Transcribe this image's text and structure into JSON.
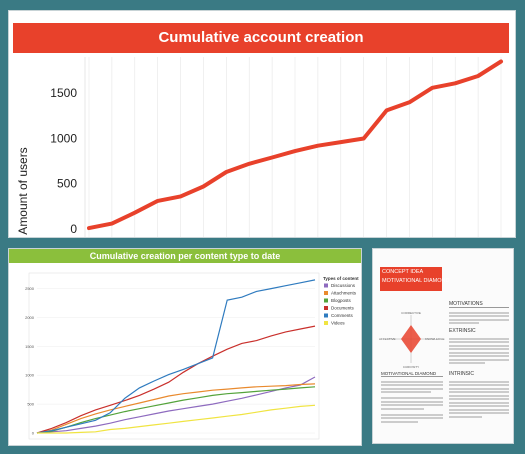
{
  "panel1": {
    "title": "Cumulative account creation",
    "chart_data": {
      "type": "line",
      "ylabel": "Amount of users",
      "xlabel": "",
      "yticks": [
        0,
        500,
        1000,
        1500
      ],
      "ylim": [
        0,
        1900
      ],
      "series": [
        {
          "color": "#e8412b",
          "values": [
            10,
            60,
            180,
            310,
            360,
            470,
            630,
            720,
            790,
            860,
            920,
            960,
            1000,
            1310,
            1400,
            1560,
            1610,
            1690,
            1850
          ]
        }
      ]
    }
  },
  "panel2": {
    "title": "Cumulative creation per content type to date",
    "chart_data": {
      "type": "line",
      "xlabel": "",
      "ylabel": "",
      "yticks": [
        0,
        500,
        1000,
        1500,
        2000,
        2500
      ],
      "ylim": [
        0,
        2700
      ],
      "legend_title": "Types of content",
      "legend_position": "right",
      "series": [
        {
          "name": "Discussions",
          "color": "#8e6bbf",
          "values": [
            0,
            20,
            40,
            80,
            120,
            170,
            230,
            280,
            330,
            380,
            420,
            460,
            500,
            550,
            600,
            660,
            720,
            780,
            830,
            970
          ]
        },
        {
          "name": "Attachments",
          "color": "#e98a2e",
          "values": [
            0,
            50,
            150,
            250,
            330,
            400,
            460,
            520,
            580,
            640,
            680,
            710,
            740,
            760,
            780,
            800,
            810,
            820,
            840,
            850
          ]
        },
        {
          "name": "Blogposts",
          "color": "#54a33b",
          "values": [
            0,
            30,
            100,
            180,
            250,
            310,
            370,
            420,
            470,
            520,
            570,
            610,
            650,
            680,
            700,
            720,
            740,
            760,
            780,
            800
          ]
        },
        {
          "name": "Documents",
          "color": "#c9302c",
          "values": [
            0,
            80,
            180,
            300,
            400,
            480,
            560,
            650,
            760,
            880,
            1050,
            1200,
            1330,
            1450,
            1550,
            1600,
            1680,
            1750,
            1800,
            1850
          ]
        },
        {
          "name": "Comments",
          "color": "#2f7bbf",
          "values": [
            0,
            40,
            100,
            160,
            220,
            350,
            600,
            780,
            900,
            1010,
            1100,
            1200,
            1300,
            2300,
            2350,
            2450,
            2500,
            2550,
            2600,
            2650
          ]
        },
        {
          "name": "Videos",
          "color": "#f0e442",
          "values": [
            0,
            0,
            0,
            10,
            20,
            60,
            80,
            110,
            140,
            170,
            200,
            230,
            260,
            290,
            320,
            360,
            400,
            430,
            460,
            480
          ]
        }
      ]
    }
  },
  "panel3": {
    "title_line1": "CONCEPT IDEA",
    "title_line2": "MOTIVATIONAL DIAMOND",
    "diamond_top": "CORRECTIVE",
    "diamond_left": "AFFECTIVE",
    "diamond_right": "KNOWLEDGE",
    "diamond_bottom": "CURIOSITY",
    "heading_motivations": "MOTIVATIONS",
    "heading_extrinsic": "EXTRINSIC",
    "heading_intrinsic": "INTRINSIC",
    "heading_diamond": "MOTIVATIONAL DIAMOND",
    "accent": "#e8412b"
  }
}
